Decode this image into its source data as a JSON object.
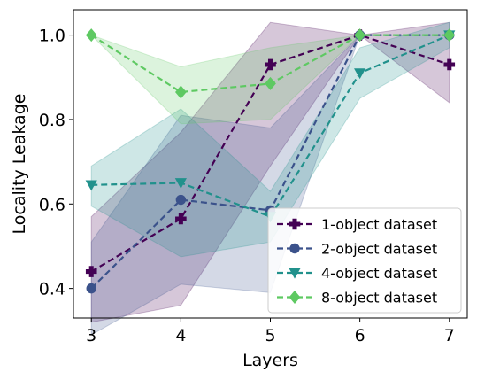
{
  "chart_data": {
    "type": "line",
    "xlabel": "Layers",
    "ylabel": "Locality Leakage",
    "x": [
      3,
      4,
      5,
      6,
      7
    ],
    "xlim": [
      2.8,
      7.2
    ],
    "ylim": [
      0.33,
      1.06
    ],
    "xticks": [
      "3",
      "4",
      "5",
      "6",
      "7"
    ],
    "yticks": [
      "0.4",
      "0.6",
      "0.8",
      "1.0"
    ],
    "legend_position": "bottom-right",
    "grid": false,
    "series": [
      {
        "name": "1-object dataset",
        "color": "#440154",
        "marker": "plus",
        "values": [
          0.44,
          0.565,
          0.93,
          1.0,
          0.93
        ],
        "lower": [
          0.32,
          0.36,
          0.69,
          1.0,
          0.84
        ],
        "upper": [
          0.57,
          0.77,
          1.03,
          1.0,
          1.03
        ]
      },
      {
        "name": "2-object dataset",
        "color": "#3b528b",
        "marker": "circle",
        "values": [
          0.4,
          0.61,
          0.585,
          1.0,
          1.0
        ],
        "lower": [
          0.29,
          0.41,
          0.39,
          1.0,
          1.0
        ],
        "upper": [
          0.51,
          0.81,
          0.78,
          1.0,
          1.0
        ]
      },
      {
        "name": "4-object dataset",
        "color": "#21918c",
        "marker": "triangle-down",
        "values": [
          0.645,
          0.65,
          0.57,
          0.91,
          1.0
        ],
        "lower": [
          0.595,
          0.475,
          0.51,
          0.85,
          0.97
        ],
        "upper": [
          0.69,
          0.825,
          0.63,
          0.97,
          1.03
        ]
      },
      {
        "name": "8-object dataset",
        "color": "#5ec962",
        "marker": "diamond",
        "values": [
          1.0,
          0.865,
          0.885,
          1.0,
          1.0
        ],
        "lower": [
          1.0,
          0.79,
          0.8,
          1.0,
          1.0
        ],
        "upper": [
          1.0,
          0.925,
          0.97,
          1.0,
          1.0
        ]
      }
    ]
  }
}
